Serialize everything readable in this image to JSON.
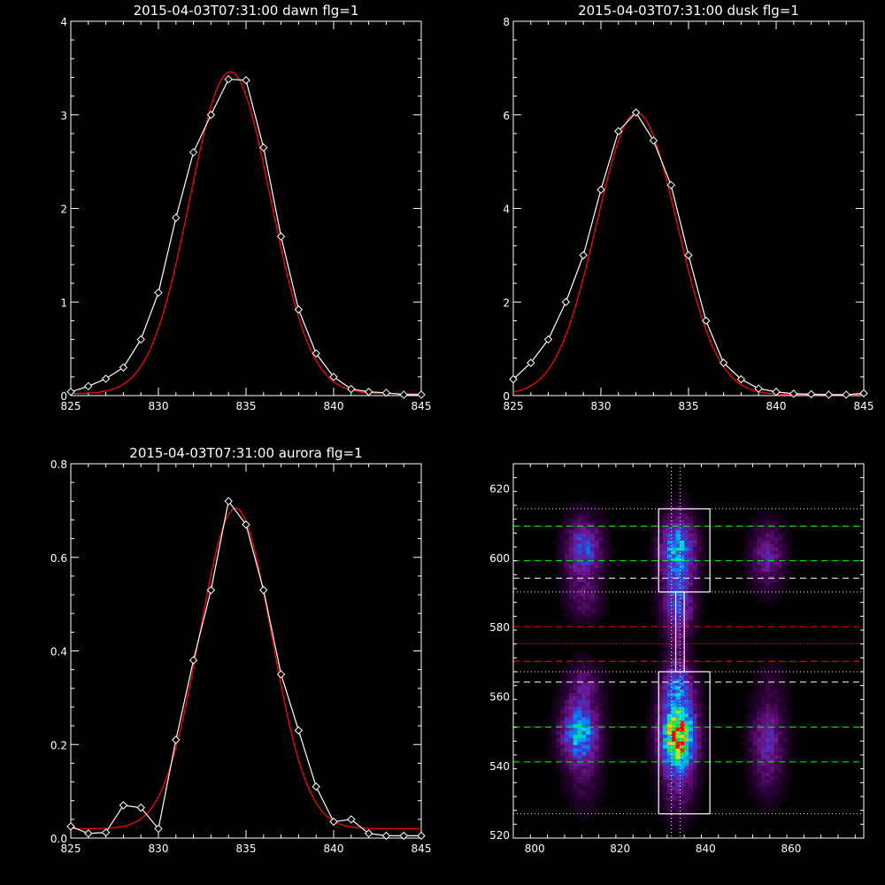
{
  "chart_data": [
    {
      "type": "line",
      "title": "2015-04-03T07:31:00 dawn flg=1",
      "xlim": [
        825,
        845
      ],
      "ylim": [
        0,
        4
      ],
      "xticks": [
        825,
        830,
        835,
        840,
        845
      ],
      "yticks": [
        0,
        1,
        2,
        3,
        4
      ],
      "grid": false,
      "series": [
        {
          "color": "#ffffff",
          "markers": "diamond",
          "x": [
            825,
            826,
            827,
            828,
            829,
            830,
            831,
            832,
            833,
            834,
            835,
            836,
            837,
            838,
            839,
            840,
            841,
            842,
            843,
            844,
            845
          ],
          "y": [
            0.04,
            0.1,
            0.18,
            0.3,
            0.6,
            1.1,
            1.9,
            2.6,
            3.0,
            3.38,
            3.37,
            2.65,
            1.7,
            0.92,
            0.45,
            0.2,
            0.07,
            0.04,
            0.03,
            0.01,
            0.01
          ]
        },
        {
          "color": "#ff0000",
          "fit": "gaussian",
          "amplitude": 3.44,
          "center": 834.1,
          "sigma": 2.3,
          "offset": 0.02
        }
      ]
    },
    {
      "type": "line",
      "title": "2015-04-03T07:31:00 dusk flg=1",
      "xlim": [
        825,
        845
      ],
      "ylim": [
        0,
        8
      ],
      "xticks": [
        825,
        830,
        835,
        840,
        845
      ],
      "yticks": [
        0,
        2,
        4,
        6,
        8
      ],
      "grid": false,
      "series": [
        {
          "color": "#ffffff",
          "markers": "diamond",
          "x": [
            825,
            826,
            827,
            828,
            829,
            830,
            831,
            832,
            833,
            834,
            835,
            836,
            837,
            838,
            839,
            840,
            841,
            842,
            843,
            844,
            845
          ],
          "y": [
            0.35,
            0.7,
            1.2,
            2.0,
            3.0,
            4.4,
            5.65,
            6.05,
            5.45,
            4.5,
            3.0,
            1.6,
            0.7,
            0.35,
            0.15,
            0.08,
            0.04,
            0.03,
            0.02,
            0.02,
            0.05
          ]
        },
        {
          "color": "#ff0000",
          "fit": "gaussian",
          "amplitude": 6.02,
          "center": 832.05,
          "sigma": 2.3,
          "offset": 0.02
        }
      ]
    },
    {
      "type": "line",
      "title": "2015-04-03T07:31:00 aurora flg=1",
      "xlim": [
        825,
        845
      ],
      "ylim": [
        0,
        0.8
      ],
      "xticks": [
        825,
        830,
        835,
        840,
        845
      ],
      "yticks": [
        0,
        0.2,
        0.4,
        0.6,
        0.8
      ],
      "ytick_labels": [
        "0.0",
        "0.2",
        "0.4",
        "0.6",
        "0.8"
      ],
      "grid": false,
      "series": [
        {
          "color": "#ffffff",
          "markers": "diamond",
          "x": [
            825,
            826,
            827,
            828,
            829,
            830,
            831,
            832,
            833,
            834,
            835,
            836,
            837,
            838,
            839,
            840,
            841,
            842,
            843,
            844,
            845
          ],
          "y": [
            0.025,
            0.01,
            0.012,
            0.07,
            0.065,
            0.02,
            0.21,
            0.38,
            0.53,
            0.72,
            0.67,
            0.53,
            0.35,
            0.23,
            0.11,
            0.035,
            0.04,
            0.01,
            0.005,
            0.005,
            0.005
          ]
        },
        {
          "color": "#ff0000",
          "fit": "gaussian",
          "amplitude": 0.685,
          "center": 834.4,
          "sigma": 2.05,
          "offset": 0.02
        }
      ]
    },
    {
      "type": "heatmap",
      "xlim": [
        795,
        877
      ],
      "ylim": [
        519,
        627
      ],
      "xticks": [
        800,
        820,
        840,
        860
      ],
      "yticks": [
        520,
        540,
        560,
        580,
        600,
        620
      ],
      "colormap": "rainbow-on-black",
      "blobs": [
        {
          "x": 811,
          "y": 602,
          "sx": 3.2,
          "sy": 6.5,
          "a": 0.42
        },
        {
          "x": 811,
          "y": 587,
          "sx": 3.2,
          "sy": 5.0,
          "a": 0.18
        },
        {
          "x": 810,
          "y": 549,
          "sx": 3.2,
          "sy": 6.0,
          "a": 0.58
        },
        {
          "x": 811,
          "y": 563,
          "sx": 3.2,
          "sy": 5.0,
          "a": 0.22
        },
        {
          "x": 811,
          "y": 535,
          "sx": 3.2,
          "sy": 7.0,
          "a": 0.14
        },
        {
          "x": 833,
          "y": 602,
          "sx": 3.0,
          "sy": 7.0,
          "a": 0.58
        },
        {
          "x": 833,
          "y": 586,
          "sx": 3.0,
          "sy": 6.0,
          "a": 0.3
        },
        {
          "x": 833,
          "y": 548,
          "sx": 3.0,
          "sy": 6.5,
          "a": 0.95
        },
        {
          "x": 833,
          "y": 562,
          "sx": 3.0,
          "sy": 5.0,
          "a": 0.35
        },
        {
          "x": 833,
          "y": 533,
          "sx": 3.0,
          "sy": 7.0,
          "a": 0.22
        },
        {
          "x": 833,
          "y": 574,
          "sx": 2.0,
          "sy": 9.0,
          "a": 0.16
        },
        {
          "x": 854,
          "y": 600,
          "sx": 3.0,
          "sy": 7.0,
          "a": 0.3
        },
        {
          "x": 854,
          "y": 548,
          "sx": 3.0,
          "sy": 7.0,
          "a": 0.32
        },
        {
          "x": 854,
          "y": 535,
          "sx": 3.0,
          "sy": 6.0,
          "a": 0.12
        },
        {
          "x": 855,
          "y": 564,
          "sx": 3.0,
          "sy": 5.0,
          "a": 0.1
        }
      ],
      "hot_pixels": [
        {
          "x": 832,
          "y": 547,
          "value": 1.0
        },
        {
          "x": 833,
          "y": 546,
          "value": 1.0
        },
        {
          "x": 834,
          "y": 548,
          "value": 0.92
        },
        {
          "x": 831,
          "y": 549,
          "value": 0.85
        }
      ],
      "hlines": [
        {
          "y": 614,
          "color": "#ffffff",
          "style": "dotted"
        },
        {
          "y": 609,
          "color": "#00ff00",
          "style": "dashed"
        },
        {
          "y": 599,
          "color": "#00ff00",
          "style": "dashed"
        },
        {
          "y": 594,
          "color": "#ffffff",
          "style": "dashed"
        },
        {
          "y": 590,
          "color": "#ffffff",
          "style": "dotted"
        },
        {
          "y": 580,
          "color": "#ff0000",
          "style": "dashed"
        },
        {
          "y": 575,
          "color": "#ff0000",
          "style": "dotted"
        },
        {
          "y": 570,
          "color": "#ff0000",
          "style": "dashed"
        },
        {
          "y": 567,
          "color": "#ffffff",
          "style": "dotted"
        },
        {
          "y": 564,
          "color": "#ffffff",
          "style": "dashed"
        },
        {
          "y": 551,
          "color": "#00ff00",
          "style": "dashed"
        },
        {
          "y": 541,
          "color": "#00ff00",
          "style": "dashed"
        },
        {
          "y": 526,
          "color": "#ffffff",
          "style": "dotted"
        }
      ],
      "vlines": [
        {
          "x": 832,
          "color": "#ffffff",
          "style": "dotted"
        },
        {
          "x": 834,
          "color": "#ffffff",
          "style": "dotted"
        }
      ],
      "boxes": [
        {
          "x0": 829,
          "x1": 841,
          "y0": 590,
          "y1": 614
        },
        {
          "x0": 829,
          "x1": 841,
          "y0": 526,
          "y1": 567
        },
        {
          "x0": 833,
          "x1": 835,
          "y0": 567,
          "y1": 590
        }
      ]
    }
  ]
}
